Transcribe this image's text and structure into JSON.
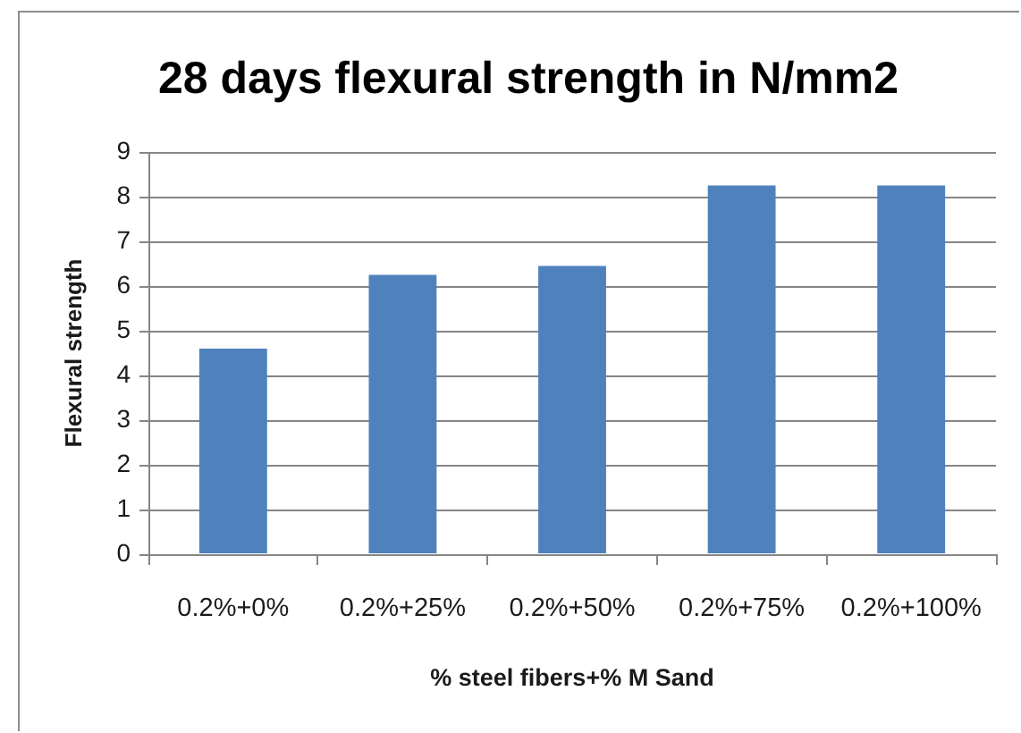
{
  "chart_data": {
    "type": "bar",
    "title": "28 days flexural strength in N/mm2",
    "xlabel": "% steel fibers+% M Sand",
    "ylabel": "Flexural strength",
    "categories": [
      "0.2%+0%",
      "0.2%+25%",
      "0.2%+50%",
      "0.2%+75%",
      "0.2%+100%"
    ],
    "values": [
      4.6,
      6.25,
      6.45,
      8.25,
      8.25
    ],
    "color": "#4f81bd",
    "ylim": [
      0,
      9
    ],
    "yticks": [
      0,
      1,
      2,
      3,
      4,
      5,
      6,
      7,
      8,
      9
    ],
    "grid": "y"
  }
}
